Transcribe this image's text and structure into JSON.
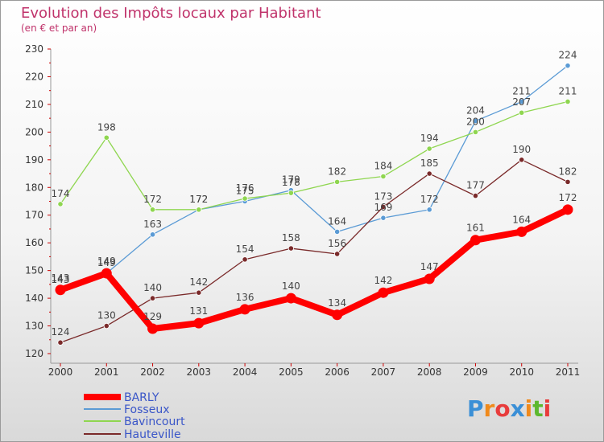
{
  "title": "Evolution des Impôts locaux par Habitant",
  "subtitle": "(en € et par an)",
  "logo": {
    "text": "Proxiti",
    "letters": [
      "P",
      "r",
      "o",
      "x",
      "i",
      "t",
      "i"
    ],
    "colors": [
      "#3a8fd6",
      "#f08a1c",
      "#e83c3c",
      "#3a8fd6",
      "#f08a1c",
      "#5cb82e",
      "#e83c3c"
    ]
  },
  "chart_data": {
    "type": "line",
    "title": "Evolution des Impôts locaux par Habitant",
    "subtitle": "(en € et par an)",
    "xlabel": "",
    "ylabel": "",
    "categories": [
      "2000",
      "2001",
      "2002",
      "2003",
      "2004",
      "2005",
      "2006",
      "2007",
      "2008",
      "2009",
      "2010",
      "2011"
    ],
    "ylim": [
      120,
      230
    ],
    "yticks": [
      120,
      130,
      140,
      150,
      160,
      170,
      180,
      190,
      200,
      210,
      220,
      230
    ],
    "grid": false,
    "legend": "bottom-left",
    "series": [
      {
        "name": "BARLY",
        "color": "#ff0000",
        "values": [
          143,
          149,
          129,
          131,
          136,
          140,
          134,
          142,
          147,
          161,
          164,
          172
        ],
        "labels": [
          "143",
          "149",
          "129",
          "131",
          "136",
          "140",
          "134",
          "142",
          "147",
          "161",
          "164",
          "172"
        ]
      },
      {
        "name": "Fosseux",
        "color": "#5b9bd5",
        "values": [
          143,
          149,
          163,
          172,
          175,
          179,
          164,
          169,
          172,
          204,
          211,
          224
        ],
        "labels": [
          "143",
          "149",
          "163",
          "172",
          "175",
          "179",
          "164",
          "169",
          "172",
          "204",
          "211",
          "224"
        ]
      },
      {
        "name": "Bavincourt",
        "color": "#8fd650",
        "values": [
          174,
          198,
          172,
          172,
          176,
          178,
          182,
          184,
          194,
          200,
          207,
          211
        ],
        "labels": [
          "174",
          "198",
          "172",
          "172",
          "176",
          "178",
          "182",
          "184",
          "194",
          "200",
          "207",
          "211"
        ]
      },
      {
        "name": "Hauteville",
        "color": "#7a2a2a",
        "values": [
          124,
          130,
          140,
          142,
          154,
          158,
          156,
          173,
          185,
          177,
          190,
          182
        ],
        "labels": [
          "124",
          "130",
          "140",
          "142",
          "154",
          "158",
          "156",
          "173",
          "185",
          "177",
          "190",
          "182"
        ]
      }
    ]
  }
}
